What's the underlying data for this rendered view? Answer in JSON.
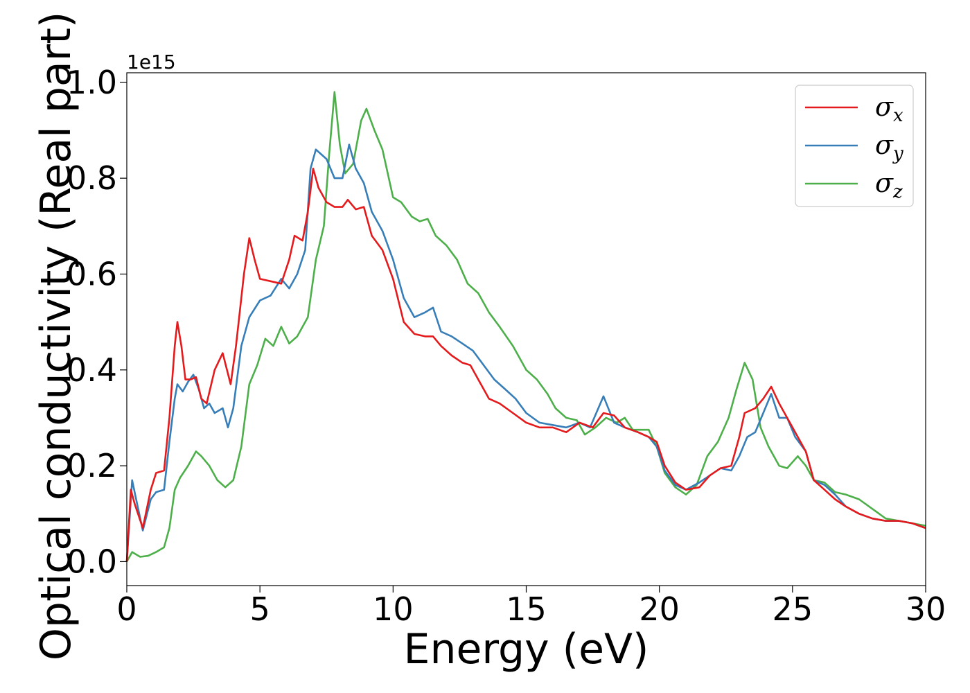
{
  "chart_data": {
    "type": "line",
    "xlabel": "Energy (eV)",
    "ylabel": "Optical conductivity (Real part)",
    "y_offset_text": "1e15",
    "xlim": [
      0,
      30
    ],
    "ylim": [
      -0.05,
      1.02
    ],
    "xticks": [
      0,
      5,
      10,
      15,
      20,
      25,
      30
    ],
    "xtick_labels": [
      "0",
      "5",
      "10",
      "15",
      "20",
      "25",
      "30"
    ],
    "yticks": [
      0.0,
      0.2,
      0.4,
      0.6,
      0.8,
      1.0
    ],
    "ytick_labels": [
      "0.0",
      "0.2",
      "0.4",
      "0.6",
      "0.8",
      "1.0"
    ],
    "grid": false,
    "legend_position": "top-right",
    "series": [
      {
        "name": "σx",
        "symbol": "σ",
        "subscript": "x",
        "color": "#e41a1c",
        "points": [
          [
            0,
            0.0
          ],
          [
            0.15,
            0.15
          ],
          [
            0.3,
            0.12
          ],
          [
            0.6,
            0.07
          ],
          [
            0.9,
            0.15
          ],
          [
            1.1,
            0.185
          ],
          [
            1.4,
            0.19
          ],
          [
            1.6,
            0.3
          ],
          [
            1.8,
            0.45
          ],
          [
            1.9,
            0.5
          ],
          [
            2.05,
            0.45
          ],
          [
            2.2,
            0.38
          ],
          [
            2.4,
            0.38
          ],
          [
            2.6,
            0.385
          ],
          [
            2.8,
            0.34
          ],
          [
            3.0,
            0.33
          ],
          [
            3.3,
            0.4
          ],
          [
            3.6,
            0.435
          ],
          [
            3.9,
            0.37
          ],
          [
            4.1,
            0.45
          ],
          [
            4.4,
            0.6
          ],
          [
            4.6,
            0.675
          ],
          [
            4.8,
            0.63
          ],
          [
            5.0,
            0.59
          ],
          [
            5.4,
            0.585
          ],
          [
            5.8,
            0.58
          ],
          [
            6.1,
            0.63
          ],
          [
            6.3,
            0.68
          ],
          [
            6.6,
            0.67
          ],
          [
            6.8,
            0.73
          ],
          [
            7.0,
            0.82
          ],
          [
            7.2,
            0.78
          ],
          [
            7.5,
            0.75
          ],
          [
            7.8,
            0.74
          ],
          [
            8.1,
            0.74
          ],
          [
            8.3,
            0.755
          ],
          [
            8.6,
            0.735
          ],
          [
            8.9,
            0.74
          ],
          [
            9.2,
            0.68
          ],
          [
            9.6,
            0.65
          ],
          [
            10.0,
            0.59
          ],
          [
            10.4,
            0.5
          ],
          [
            10.8,
            0.475
          ],
          [
            11.2,
            0.47
          ],
          [
            11.5,
            0.47
          ],
          [
            11.8,
            0.45
          ],
          [
            12.2,
            0.43
          ],
          [
            12.6,
            0.415
          ],
          [
            12.9,
            0.41
          ],
          [
            13.2,
            0.38
          ],
          [
            13.6,
            0.34
          ],
          [
            14.0,
            0.33
          ],
          [
            14.5,
            0.31
          ],
          [
            15.0,
            0.29
          ],
          [
            15.5,
            0.28
          ],
          [
            16.0,
            0.28
          ],
          [
            16.5,
            0.27
          ],
          [
            17.0,
            0.29
          ],
          [
            17.5,
            0.28
          ],
          [
            17.9,
            0.31
          ],
          [
            18.3,
            0.305
          ],
          [
            18.7,
            0.28
          ],
          [
            19.2,
            0.27
          ],
          [
            19.6,
            0.26
          ],
          [
            19.9,
            0.25
          ],
          [
            20.2,
            0.2
          ],
          [
            20.6,
            0.165
          ],
          [
            21.0,
            0.15
          ],
          [
            21.5,
            0.155
          ],
          [
            21.9,
            0.18
          ],
          [
            22.3,
            0.195
          ],
          [
            22.7,
            0.2
          ],
          [
            23.0,
            0.26
          ],
          [
            23.2,
            0.31
          ],
          [
            23.6,
            0.32
          ],
          [
            23.9,
            0.34
          ],
          [
            24.2,
            0.365
          ],
          [
            24.5,
            0.33
          ],
          [
            24.8,
            0.3
          ],
          [
            25.1,
            0.27
          ],
          [
            25.5,
            0.23
          ],
          [
            25.8,
            0.17
          ],
          [
            26.2,
            0.15
          ],
          [
            26.6,
            0.13
          ],
          [
            27.0,
            0.115
          ],
          [
            27.5,
            0.1
          ],
          [
            28.0,
            0.09
          ],
          [
            28.5,
            0.085
          ],
          [
            29.0,
            0.085
          ],
          [
            29.5,
            0.08
          ],
          [
            30.0,
            0.07
          ]
        ]
      },
      {
        "name": "σy",
        "symbol": "σ",
        "subscript": "y",
        "color": "#377eb8",
        "points": [
          [
            0,
            0.0
          ],
          [
            0.2,
            0.17
          ],
          [
            0.35,
            0.13
          ],
          [
            0.6,
            0.065
          ],
          [
            0.9,
            0.13
          ],
          [
            1.1,
            0.145
          ],
          [
            1.4,
            0.15
          ],
          [
            1.6,
            0.25
          ],
          [
            1.8,
            0.34
          ],
          [
            1.9,
            0.37
          ],
          [
            2.1,
            0.355
          ],
          [
            2.3,
            0.375
          ],
          [
            2.5,
            0.39
          ],
          [
            2.7,
            0.36
          ],
          [
            2.9,
            0.32
          ],
          [
            3.1,
            0.33
          ],
          [
            3.3,
            0.31
          ],
          [
            3.6,
            0.32
          ],
          [
            3.8,
            0.28
          ],
          [
            4.0,
            0.32
          ],
          [
            4.3,
            0.45
          ],
          [
            4.6,
            0.51
          ],
          [
            5.0,
            0.545
          ],
          [
            5.4,
            0.555
          ],
          [
            5.8,
            0.59
          ],
          [
            6.1,
            0.57
          ],
          [
            6.4,
            0.6
          ],
          [
            6.7,
            0.65
          ],
          [
            6.9,
            0.82
          ],
          [
            7.1,
            0.86
          ],
          [
            7.3,
            0.85
          ],
          [
            7.5,
            0.84
          ],
          [
            7.8,
            0.8
          ],
          [
            8.1,
            0.8
          ],
          [
            8.35,
            0.87
          ],
          [
            8.6,
            0.82
          ],
          [
            8.9,
            0.79
          ],
          [
            9.2,
            0.73
          ],
          [
            9.6,
            0.69
          ],
          [
            10.0,
            0.63
          ],
          [
            10.4,
            0.55
          ],
          [
            10.8,
            0.51
          ],
          [
            11.2,
            0.52
          ],
          [
            11.5,
            0.53
          ],
          [
            11.8,
            0.48
          ],
          [
            12.2,
            0.47
          ],
          [
            12.6,
            0.455
          ],
          [
            13.0,
            0.44
          ],
          [
            13.4,
            0.41
          ],
          [
            13.8,
            0.38
          ],
          [
            14.2,
            0.36
          ],
          [
            14.6,
            0.34
          ],
          [
            15.0,
            0.31
          ],
          [
            15.5,
            0.29
          ],
          [
            16.0,
            0.285
          ],
          [
            16.5,
            0.28
          ],
          [
            17.0,
            0.29
          ],
          [
            17.4,
            0.28
          ],
          [
            17.9,
            0.345
          ],
          [
            18.3,
            0.29
          ],
          [
            18.7,
            0.28
          ],
          [
            19.2,
            0.27
          ],
          [
            19.6,
            0.26
          ],
          [
            19.9,
            0.24
          ],
          [
            20.2,
            0.19
          ],
          [
            20.6,
            0.16
          ],
          [
            21.0,
            0.15
          ],
          [
            21.5,
            0.165
          ],
          [
            21.9,
            0.18
          ],
          [
            22.3,
            0.195
          ],
          [
            22.7,
            0.19
          ],
          [
            23.0,
            0.22
          ],
          [
            23.3,
            0.26
          ],
          [
            23.6,
            0.27
          ],
          [
            23.9,
            0.31
          ],
          [
            24.2,
            0.35
          ],
          [
            24.5,
            0.3
          ],
          [
            24.8,
            0.3
          ],
          [
            25.1,
            0.26
          ],
          [
            25.5,
            0.23
          ],
          [
            25.8,
            0.17
          ],
          [
            26.2,
            0.16
          ],
          [
            26.6,
            0.14
          ],
          [
            27.0,
            0.115
          ],
          [
            27.5,
            0.1
          ],
          [
            28.0,
            0.09
          ],
          [
            28.5,
            0.085
          ],
          [
            29.0,
            0.085
          ],
          [
            29.5,
            0.08
          ],
          [
            30.0,
            0.07
          ]
        ]
      },
      {
        "name": "σz",
        "symbol": "σ",
        "subscript": "z",
        "color": "#4daf4a",
        "points": [
          [
            0,
            0.0
          ],
          [
            0.2,
            0.02
          ],
          [
            0.5,
            0.01
          ],
          [
            0.8,
            0.012
          ],
          [
            1.1,
            0.02
          ],
          [
            1.4,
            0.03
          ],
          [
            1.6,
            0.07
          ],
          [
            1.8,
            0.15
          ],
          [
            2.0,
            0.175
          ],
          [
            2.3,
            0.2
          ],
          [
            2.6,
            0.23
          ],
          [
            2.8,
            0.22
          ],
          [
            3.1,
            0.2
          ],
          [
            3.4,
            0.17
          ],
          [
            3.7,
            0.155
          ],
          [
            4.0,
            0.17
          ],
          [
            4.3,
            0.24
          ],
          [
            4.6,
            0.37
          ],
          [
            4.9,
            0.41
          ],
          [
            5.2,
            0.465
          ],
          [
            5.5,
            0.45
          ],
          [
            5.8,
            0.49
          ],
          [
            6.1,
            0.455
          ],
          [
            6.4,
            0.47
          ],
          [
            6.8,
            0.51
          ],
          [
            7.1,
            0.63
          ],
          [
            7.4,
            0.7
          ],
          [
            7.6,
            0.85
          ],
          [
            7.8,
            0.98
          ],
          [
            8.0,
            0.87
          ],
          [
            8.2,
            0.81
          ],
          [
            8.5,
            0.83
          ],
          [
            8.8,
            0.92
          ],
          [
            9.0,
            0.945
          ],
          [
            9.3,
            0.9
          ],
          [
            9.6,
            0.86
          ],
          [
            10.0,
            0.76
          ],
          [
            10.3,
            0.75
          ],
          [
            10.7,
            0.72
          ],
          [
            11.0,
            0.71
          ],
          [
            11.3,
            0.715
          ],
          [
            11.6,
            0.68
          ],
          [
            12.0,
            0.66
          ],
          [
            12.4,
            0.63
          ],
          [
            12.8,
            0.58
          ],
          [
            13.2,
            0.56
          ],
          [
            13.6,
            0.52
          ],
          [
            14.0,
            0.49
          ],
          [
            14.5,
            0.45
          ],
          [
            15.0,
            0.4
          ],
          [
            15.4,
            0.38
          ],
          [
            15.8,
            0.35
          ],
          [
            16.1,
            0.32
          ],
          [
            16.5,
            0.3
          ],
          [
            16.9,
            0.295
          ],
          [
            17.2,
            0.265
          ],
          [
            17.6,
            0.28
          ],
          [
            18.0,
            0.3
          ],
          [
            18.4,
            0.29
          ],
          [
            18.7,
            0.3
          ],
          [
            19.0,
            0.275
          ],
          [
            19.3,
            0.275
          ],
          [
            19.6,
            0.275
          ],
          [
            19.9,
            0.24
          ],
          [
            20.2,
            0.185
          ],
          [
            20.6,
            0.155
          ],
          [
            21.0,
            0.14
          ],
          [
            21.4,
            0.16
          ],
          [
            21.8,
            0.22
          ],
          [
            22.2,
            0.25
          ],
          [
            22.6,
            0.3
          ],
          [
            22.9,
            0.36
          ],
          [
            23.2,
            0.415
          ],
          [
            23.5,
            0.38
          ],
          [
            23.8,
            0.28
          ],
          [
            24.1,
            0.24
          ],
          [
            24.5,
            0.2
          ],
          [
            24.8,
            0.195
          ],
          [
            25.2,
            0.22
          ],
          [
            25.5,
            0.2
          ],
          [
            25.8,
            0.17
          ],
          [
            26.2,
            0.165
          ],
          [
            26.6,
            0.145
          ],
          [
            27.0,
            0.14
          ],
          [
            27.5,
            0.13
          ],
          [
            28.0,
            0.11
          ],
          [
            28.5,
            0.09
          ],
          [
            29.0,
            0.085
          ],
          [
            29.5,
            0.08
          ],
          [
            30.0,
            0.075
          ]
        ]
      }
    ]
  }
}
